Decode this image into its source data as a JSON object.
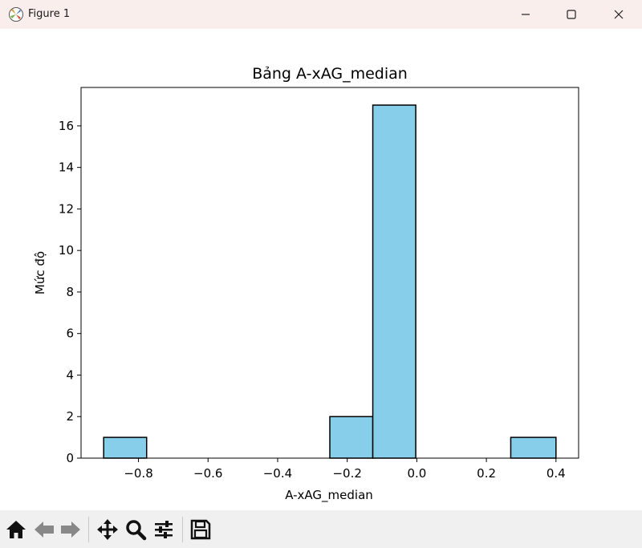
{
  "window": {
    "title": "Figure 1",
    "icons": [
      "matplotlib-logo-icon",
      "minimize-icon",
      "maximize-icon",
      "close-icon"
    ]
  },
  "toolbar": {
    "buttons": [
      "home-icon",
      "back-icon",
      "forward-icon",
      "pan-icon",
      "zoom-icon",
      "configure-subplots-icon",
      "save-icon"
    ]
  },
  "colors": {
    "bar_fill": "#87ceeb",
    "bar_edge": "#000000",
    "titlebar": "#f9eeec",
    "toolbar": "#f0f0f0"
  },
  "chart_data": {
    "type": "bar",
    "title": "Bảng A-xAG_median",
    "xlabel": "A-xAG_median",
    "ylabel": "Mức độ",
    "bins": [
      {
        "x0": -0.9,
        "x1": -0.7765,
        "count": 1
      },
      {
        "x0": -0.7765,
        "x1": -0.653,
        "count": 0
      },
      {
        "x0": -0.653,
        "x1": -0.5295,
        "count": 0
      },
      {
        "x0": -0.5295,
        "x1": -0.406,
        "count": 0
      },
      {
        "x0": -0.406,
        "x1": -0.2825,
        "count": 0
      },
      {
        "x0": -0.25,
        "x1": -0.1265,
        "count": 2
      },
      {
        "x0": -0.1265,
        "x1": -0.003,
        "count": 17
      },
      {
        "x0": -0.003,
        "x1": 0.1205,
        "count": 0
      },
      {
        "x0": 0.1205,
        "x1": 0.244,
        "count": 0
      },
      {
        "x0": 0.27,
        "x1": 0.4,
        "count": 1
      }
    ],
    "xticks": [
      -0.8,
      -0.6,
      -0.4,
      -0.2,
      0.0,
      0.2,
      0.4
    ],
    "xtick_labels": [
      "−0.8",
      "−0.6",
      "−0.4",
      "−0.2",
      "0.0",
      "0.2",
      "0.4"
    ],
    "yticks": [
      0,
      2,
      4,
      6,
      8,
      10,
      12,
      14,
      16
    ],
    "xlim": [
      -0.965,
      0.465
    ],
    "ylim": [
      0,
      17.85
    ],
    "grid": false,
    "legend": "none"
  }
}
